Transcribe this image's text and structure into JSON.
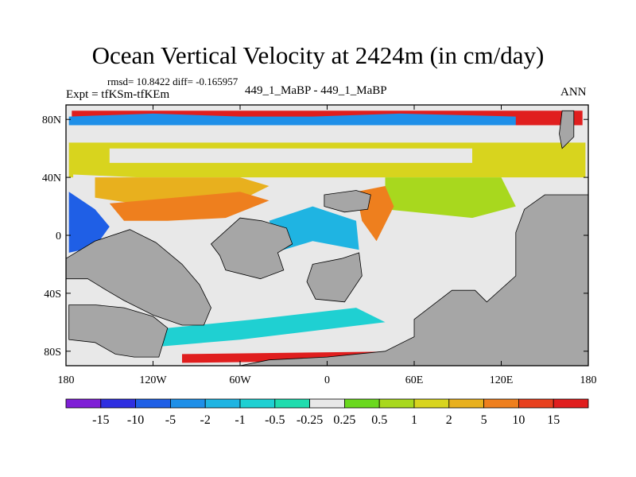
{
  "chart_data": {
    "type": "heatmap",
    "title": "Ocean Vertical Velocity at 2424m (in cm/day)",
    "stats": "rmsd= 10.8422 diff= -0.165957",
    "expt": "Expt = tfKSm-tfKEm",
    "subtitle": "449_1_MaBP - 449_1_MaBP",
    "season": "ANN",
    "x_range": [
      -180,
      180
    ],
    "y_range": [
      -90,
      90
    ],
    "x_ticks": [
      {
        "value": -180,
        "label": "180"
      },
      {
        "value": -120,
        "label": "120W"
      },
      {
        "value": -60,
        "label": "60W"
      },
      {
        "value": 0,
        "label": "0"
      },
      {
        "value": 60,
        "label": "60E"
      },
      {
        "value": 120,
        "label": "120E"
      },
      {
        "value": 180,
        "label": "180"
      }
    ],
    "y_ticks": [
      {
        "value": 80,
        "label": "80N"
      },
      {
        "value": 40,
        "label": "40N"
      },
      {
        "value": 0,
        "label": "0"
      },
      {
        "value": -40,
        "label": "40S"
      },
      {
        "value": -80,
        "label": "80S"
      }
    ],
    "colorbar": {
      "boundaries": [
        "-15",
        "-10",
        "-5",
        "-2",
        "-1",
        "-0.5",
        "-0.25",
        "0.25",
        "0.5",
        "1",
        "2",
        "5",
        "10",
        "15"
      ],
      "colors": [
        "#7f1fd6",
        "#2f2fe0",
        "#1f5fe6",
        "#1e8fe8",
        "#1fb4e2",
        "#1fd0d2",
        "#1fdcae",
        "#e8e8e8",
        "#6ad81e",
        "#a8d81e",
        "#d8d41e",
        "#e8b01e",
        "#ee7f1e",
        "#e8401e",
        "#e01e1e"
      ]
    },
    "land_color": "#a6a6a6",
    "land_regions": [
      {
        "name": "north-america",
        "polygon": [
          [
            -180,
            -16
          ],
          [
            -180,
            -30
          ],
          [
            -165,
            -30
          ],
          [
            -152,
            -38
          ],
          [
            -140,
            -45
          ],
          [
            -120,
            -55
          ],
          [
            -100,
            -62
          ],
          [
            -85,
            -62
          ],
          [
            -80,
            -50
          ],
          [
            -88,
            -34
          ],
          [
            -100,
            -20
          ],
          [
            -118,
            -5
          ],
          [
            -136,
            4
          ],
          [
            -160,
            -4
          ]
        ]
      },
      {
        "name": "south-america",
        "polygon": [
          [
            -178,
            -48
          ],
          [
            -178,
            -72
          ],
          [
            -160,
            -74
          ],
          [
            -146,
            -82
          ],
          [
            -133,
            -84
          ],
          [
            -116,
            -84
          ],
          [
            -110,
            -64
          ],
          [
            -120,
            -56
          ],
          [
            -140,
            -50
          ],
          [
            -160,
            -48
          ]
        ]
      },
      {
        "name": "africa-west",
        "polygon": [
          [
            -80,
            -6
          ],
          [
            -60,
            12
          ],
          [
            -45,
            10
          ],
          [
            -28,
            5
          ],
          [
            -24,
            -6
          ],
          [
            -34,
            -12
          ],
          [
            -30,
            -24
          ],
          [
            -46,
            -30
          ],
          [
            -70,
            -24
          ],
          [
            -74,
            -14
          ]
        ]
      },
      {
        "name": "africa-east",
        "polygon": [
          [
            -10,
            -20
          ],
          [
            10,
            -16
          ],
          [
            22,
            -12
          ],
          [
            24,
            -28
          ],
          [
            12,
            -46
          ],
          [
            -8,
            -44
          ],
          [
            -14,
            -32
          ]
        ]
      },
      {
        "name": "asia-east",
        "polygon": [
          [
            -2,
            28
          ],
          [
            20,
            31
          ],
          [
            30,
            28
          ],
          [
            28,
            18
          ],
          [
            12,
            16
          ],
          [
            -2,
            20
          ]
        ]
      },
      {
        "name": "antarctica",
        "polygon": [
          [
            60,
            -58
          ],
          [
            86,
            -38
          ],
          [
            102,
            -38
          ],
          [
            110,
            -46
          ],
          [
            130,
            -28
          ],
          [
            130,
            2
          ],
          [
            136,
            18
          ],
          [
            150,
            28
          ],
          [
            172,
            28
          ],
          [
            180,
            28
          ],
          [
            180,
            -90
          ],
          [
            -60,
            -90
          ],
          [
            -40,
            -86
          ],
          [
            0,
            -84
          ],
          [
            40,
            -80
          ],
          [
            60,
            -70
          ]
        ]
      },
      {
        "name": "arctic-peninsula",
        "polygon": [
          [
            162,
            86
          ],
          [
            170,
            86
          ],
          [
            170,
            68
          ],
          [
            162,
            60
          ],
          [
            160,
            70
          ]
        ]
      }
    ],
    "fields": [
      {
        "name": "arctic-fringe",
        "value": 15,
        "polygon": [
          [
            -176,
            86
          ],
          [
            176,
            86
          ],
          [
            176,
            76
          ],
          [
            -176,
            76
          ]
        ]
      },
      {
        "name": "arctic-inner",
        "value": 0,
        "polygon": [
          [
            -150,
            79
          ],
          [
            120,
            79
          ],
          [
            120,
            66
          ],
          [
            -150,
            66
          ]
        ]
      },
      {
        "name": "arctic-blue",
        "value": -5,
        "polygon": [
          [
            -178,
            82
          ],
          [
            -120,
            84
          ],
          [
            -60,
            82
          ],
          [
            -10,
            82
          ],
          [
            50,
            84
          ],
          [
            130,
            82
          ],
          [
            130,
            76
          ],
          [
            -178,
            76
          ]
        ]
      },
      {
        "name": "mid-north-green",
        "value": 1,
        "polygon": [
          [
            -178,
            64
          ],
          [
            178,
            64
          ],
          [
            178,
            40
          ],
          [
            -178,
            40
          ]
        ]
      },
      {
        "name": "mid-north-white",
        "value": 0,
        "polygon": [
          [
            -150,
            60
          ],
          [
            100,
            60
          ],
          [
            100,
            50
          ],
          [
            -150,
            50
          ]
        ]
      },
      {
        "name": "pacific-north-white",
        "value": 0,
        "polygon": [
          [
            -175,
            42
          ],
          [
            -130,
            40
          ],
          [
            -120,
            30
          ],
          [
            -150,
            24
          ],
          [
            -175,
            30
          ]
        ]
      },
      {
        "name": "tropical-yellow",
        "value": 2,
        "polygon": [
          [
            -160,
            40
          ],
          [
            -60,
            40
          ],
          [
            -40,
            34
          ],
          [
            -60,
            24
          ],
          [
            -120,
            20
          ],
          [
            -160,
            26
          ]
        ]
      },
      {
        "name": "tropical-orange",
        "value": 5,
        "polygon": [
          [
            -150,
            22
          ],
          [
            -60,
            30
          ],
          [
            -40,
            24
          ],
          [
            -70,
            12
          ],
          [
            -110,
            10
          ],
          [
            -140,
            10
          ]
        ]
      },
      {
        "name": "indian-green",
        "value": 0.5,
        "polygon": [
          [
            40,
            40
          ],
          [
            120,
            40
          ],
          [
            130,
            20
          ],
          [
            100,
            12
          ],
          [
            40,
            18
          ]
        ]
      },
      {
        "name": "indian-white",
        "value": 0,
        "polygon": [
          [
            46,
            10
          ],
          [
            100,
            12
          ],
          [
            130,
            -4
          ],
          [
            120,
            -32
          ],
          [
            80,
            -40
          ],
          [
            50,
            -36
          ],
          [
            40,
            -10
          ]
        ]
      },
      {
        "name": "south-ocean-white",
        "value": 0,
        "polygon": [
          [
            -120,
            -74
          ],
          [
            -20,
            -62
          ],
          [
            40,
            -56
          ],
          [
            60,
            -70
          ],
          [
            40,
            -78
          ],
          [
            -120,
            -86
          ]
        ]
      },
      {
        "name": "south-ocean-cyan",
        "value": -1,
        "polygon": [
          [
            -130,
            -66
          ],
          [
            -50,
            -58
          ],
          [
            20,
            -50
          ],
          [
            40,
            -60
          ],
          [
            -60,
            -72
          ],
          [
            -130,
            -78
          ]
        ]
      },
      {
        "name": "south-ocean-red",
        "value": 15,
        "polygon": [
          [
            -100,
            -82
          ],
          [
            60,
            -80
          ],
          [
            60,
            -86
          ],
          [
            -100,
            -88
          ]
        ]
      },
      {
        "name": "pacific-west-blue",
        "value": -10,
        "polygon": [
          [
            -178,
            30
          ],
          [
            -160,
            18
          ],
          [
            -150,
            6
          ],
          [
            -160,
            -8
          ],
          [
            -178,
            -12
          ]
        ]
      },
      {
        "name": "atlantic-mixed",
        "value": -2,
        "polygon": [
          [
            -40,
            10
          ],
          [
            -10,
            20
          ],
          [
            20,
            10
          ],
          [
            22,
            -10
          ],
          [
            -10,
            -4
          ],
          [
            -30,
            -10
          ]
        ]
      },
      {
        "name": "east-yellow",
        "value": 5,
        "polygon": [
          [
            20,
            30
          ],
          [
            40,
            34
          ],
          [
            46,
            20
          ],
          [
            34,
            -4
          ],
          [
            24,
            10
          ]
        ]
      }
    ]
  }
}
